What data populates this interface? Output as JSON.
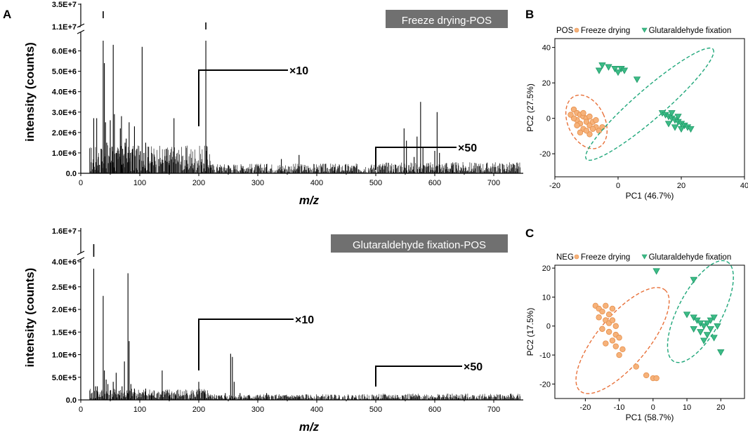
{
  "panel_labels": {
    "a": "A",
    "b": "B",
    "c": "C"
  },
  "chart_data": [
    {
      "type": "bar",
      "id": "spectrum-top",
      "title": "Freeze drying-POS",
      "xlabel": "m/z",
      "ylabel": "intensity (counts)",
      "xlim": [
        0,
        750
      ],
      "xticks": [
        "0",
        "100",
        "200",
        "300",
        "400",
        "500",
        "600",
        "700"
      ],
      "ylim": [
        0,
        6500000
      ],
      "yticks": [
        "0.0",
        "1.0E+6",
        "2.0E+6",
        "3.0E+6",
        "4.0E+6",
        "5.0E+6",
        "6.0E+6"
      ],
      "ybreak_ticks": [
        "1.1E+7",
        "3.5E+7"
      ],
      "magnifiers": [
        {
          "from": 200,
          "label": "×10"
        },
        {
          "from": 500,
          "label": "×50"
        }
      ],
      "peaks": [
        {
          "mz": 22,
          "value": 2700000
        },
        {
          "mz": 27,
          "value": 2700000
        },
        {
          "mz": 30,
          "value": 800000
        },
        {
          "mz": 35,
          "value": 1200000
        },
        {
          "mz": 38,
          "value": 6500000
        },
        {
          "mz": 40,
          "value": 5400000
        },
        {
          "mz": 42,
          "value": 2500000
        },
        {
          "mz": 44,
          "value": 1500000
        },
        {
          "mz": 50,
          "value": 2600000
        },
        {
          "mz": 53,
          "value": 1300000
        },
        {
          "mz": 55,
          "value": 6300000
        },
        {
          "mz": 57,
          "value": 2900000
        },
        {
          "mz": 60,
          "value": 1000000
        },
        {
          "mz": 63,
          "value": 700000
        },
        {
          "mz": 67,
          "value": 2200000
        },
        {
          "mz": 69,
          "value": 2800000
        },
        {
          "mz": 71,
          "value": 1200000
        },
        {
          "mz": 75,
          "value": 1500000
        },
        {
          "mz": 77,
          "value": 1700000
        },
        {
          "mz": 80,
          "value": 1000000
        },
        {
          "mz": 82,
          "value": 2500000
        },
        {
          "mz": 84,
          "value": 1000000
        },
        {
          "mz": 88,
          "value": 1200000
        },
        {
          "mz": 91,
          "value": 2300000
        },
        {
          "mz": 95,
          "value": 1200000
        },
        {
          "mz": 99,
          "value": 900000
        },
        {
          "mz": 104,
          "value": 6200000
        },
        {
          "mz": 107,
          "value": 1000000
        },
        {
          "mz": 110,
          "value": 1500000
        },
        {
          "mz": 115,
          "value": 1300000
        },
        {
          "mz": 120,
          "value": 1000000
        },
        {
          "mz": 126,
          "value": 600000
        },
        {
          "mz": 132,
          "value": 700000
        },
        {
          "mz": 138,
          "value": 500000
        },
        {
          "mz": 145,
          "value": 1200000
        },
        {
          "mz": 150,
          "value": 400000
        },
        {
          "mz": 158,
          "value": 2700000
        },
        {
          "mz": 170,
          "value": 400000
        },
        {
          "mz": 180,
          "value": 300000
        },
        {
          "mz": 190,
          "value": 250000
        },
        {
          "mz": 205,
          "value": 400000
        },
        {
          "mz": 212,
          "value": 6400000
        },
        {
          "mz": 214,
          "value": 1300000
        },
        {
          "mz": 220,
          "value": 400000
        },
        {
          "mz": 235,
          "value": 300000
        },
        {
          "mz": 250,
          "value": 400000
        },
        {
          "mz": 275,
          "value": 350000
        },
        {
          "mz": 290,
          "value": 250000
        },
        {
          "mz": 300,
          "value": 300000
        },
        {
          "mz": 315,
          "value": 450000
        },
        {
          "mz": 340,
          "value": 700000
        },
        {
          "mz": 370,
          "value": 900000
        },
        {
          "mz": 400,
          "value": 200000
        },
        {
          "mz": 430,
          "value": 150000
        },
        {
          "mz": 460,
          "value": 100000
        },
        {
          "mz": 530,
          "value": 200000
        },
        {
          "mz": 548,
          "value": 2200000
        },
        {
          "mz": 552,
          "value": 1600000
        },
        {
          "mz": 556,
          "value": 400000
        },
        {
          "mz": 565,
          "value": 800000
        },
        {
          "mz": 570,
          "value": 1800000
        },
        {
          "mz": 576,
          "value": 3500000
        },
        {
          "mz": 580,
          "value": 1300000
        },
        {
          "mz": 585,
          "value": 300000
        },
        {
          "mz": 600,
          "value": 1100000
        },
        {
          "mz": 604,
          "value": 3000000
        },
        {
          "mz": 608,
          "value": 1000000
        },
        {
          "mz": 620,
          "value": 500000
        },
        {
          "mz": 630,
          "value": 150000
        }
      ]
    },
    {
      "type": "bar",
      "id": "spectrum-bottom",
      "title": "Glutaraldehyde fixation-POS",
      "xlabel": "m/z",
      "ylabel": "intensity (counts)",
      "xlim": [
        0,
        750
      ],
      "xticks": [
        "0",
        "100",
        "200",
        "300",
        "400",
        "500",
        "600",
        "700"
      ],
      "ylim": [
        0,
        2900000
      ],
      "yticks": [
        "0.0",
        "5.0E+5",
        "1.0E+6",
        "1.5E+6",
        "2.0E+6",
        "2.5E+6"
      ],
      "ybreak_ticks": [
        "4.0E+6",
        "1.6E+7"
      ],
      "magnifiers": [
        {
          "from": 200,
          "label": "×10"
        },
        {
          "from": 500,
          "label": "×50"
        }
      ],
      "peaks": [
        {
          "mz": 22,
          "value": 2900000
        },
        {
          "mz": 25,
          "value": 300000
        },
        {
          "mz": 28,
          "value": 300000
        },
        {
          "mz": 38,
          "value": 2300000
        },
        {
          "mz": 40,
          "value": 650000
        },
        {
          "mz": 43,
          "value": 450000
        },
        {
          "mz": 46,
          "value": 350000
        },
        {
          "mz": 50,
          "value": 200000
        },
        {
          "mz": 55,
          "value": 400000
        },
        {
          "mz": 60,
          "value": 600000
        },
        {
          "mz": 65,
          "value": 200000
        },
        {
          "mz": 70,
          "value": 300000
        },
        {
          "mz": 74,
          "value": 850000
        },
        {
          "mz": 80,
          "value": 2800000
        },
        {
          "mz": 82,
          "value": 1300000
        },
        {
          "mz": 85,
          "value": 350000
        },
        {
          "mz": 91,
          "value": 250000
        },
        {
          "mz": 100,
          "value": 150000
        },
        {
          "mz": 110,
          "value": 250000
        },
        {
          "mz": 120,
          "value": 100000
        },
        {
          "mz": 130,
          "value": 150000
        },
        {
          "mz": 138,
          "value": 650000
        },
        {
          "mz": 150,
          "value": 150000
        },
        {
          "mz": 160,
          "value": 100000
        },
        {
          "mz": 175,
          "value": 80000
        },
        {
          "mz": 185,
          "value": 100000
        },
        {
          "mz": 200,
          "value": 400000
        },
        {
          "mz": 210,
          "value": 150000
        },
        {
          "mz": 230,
          "value": 100000
        },
        {
          "mz": 245,
          "value": 150000
        },
        {
          "mz": 254,
          "value": 1020000
        },
        {
          "mz": 257,
          "value": 950000
        },
        {
          "mz": 260,
          "value": 400000
        },
        {
          "mz": 270,
          "value": 150000
        },
        {
          "mz": 285,
          "value": 100000
        },
        {
          "mz": 300,
          "value": 100000
        },
        {
          "mz": 315,
          "value": 150000
        },
        {
          "mz": 330,
          "value": 80000
        },
        {
          "mz": 355,
          "value": 70000
        },
        {
          "mz": 370,
          "value": 60000
        },
        {
          "mz": 400,
          "value": 50000
        },
        {
          "mz": 430,
          "value": 60000
        },
        {
          "mz": 465,
          "value": 50000
        },
        {
          "mz": 520,
          "value": 60000
        },
        {
          "mz": 545,
          "value": 100000
        },
        {
          "mz": 560,
          "value": 70000
        },
        {
          "mz": 600,
          "value": 60000
        },
        {
          "mz": 640,
          "value": 50000
        }
      ]
    },
    {
      "type": "scatter",
      "id": "pca-pos",
      "title": "POS",
      "xlabel": "PC1 (46.7%)",
      "ylabel": "PC2 (27.5%)",
      "xlim": [
        -20,
        40
      ],
      "ylim": [
        -33,
        45
      ],
      "xticks": [
        -20,
        0,
        20,
        40
      ],
      "yticks": [
        -20,
        0,
        20,
        40
      ],
      "xtick_labels": [
        "-20",
        "0",
        "20",
        "40"
      ],
      "ytick_labels": [
        "-20",
        "0",
        "20",
        "40"
      ],
      "series": [
        {
          "name": "Freeze drying",
          "color": "#f6b27a",
          "edge": "#e58e4b",
          "marker": "circle",
          "points": [
            [
              -14,
              5
            ],
            [
              -13,
              3
            ],
            [
              -12,
              2
            ],
            [
              -11,
              1
            ],
            [
              -10,
              0
            ],
            [
              -13,
              -1
            ],
            [
              -12,
              -3
            ],
            [
              -10,
              -2
            ],
            [
              -9,
              -4
            ],
            [
              -8,
              -2
            ],
            [
              -7,
              -5
            ],
            [
              -11,
              -6
            ],
            [
              -12,
              -8
            ],
            [
              -9,
              -9
            ],
            [
              -14,
              0
            ],
            [
              -15,
              2
            ],
            [
              -13,
              -4
            ],
            [
              -10,
              -7
            ],
            [
              -8,
              -6
            ],
            [
              -6,
              -7
            ],
            [
              -5,
              -5
            ],
            [
              -7,
              -1
            ],
            [
              -11,
              3
            ],
            [
              -9,
              1
            ]
          ],
          "ellipse": {
            "cx": -10,
            "cy": -2,
            "rx": 7.5,
            "ry": 11.5,
            "angle": -25
          }
        },
        {
          "name": "Glutaraldehyde fixation",
          "color": "#3dbb86",
          "edge": "#1e9a68",
          "marker": "triangle",
          "points": [
            [
              -5,
              30
            ],
            [
              -3,
              29
            ],
            [
              -1,
              28
            ],
            [
              1,
              28
            ],
            [
              2,
              27
            ],
            [
              -6,
              27
            ],
            [
              0,
              26
            ],
            [
              6,
              22
            ],
            [
              14,
              3
            ],
            [
              15,
              2
            ],
            [
              16,
              1
            ],
            [
              17,
              0
            ],
            [
              18,
              -1
            ],
            [
              19,
              -2
            ],
            [
              20,
              -3
            ],
            [
              21,
              -4
            ],
            [
              22,
              -5
            ],
            [
              23,
              -6
            ],
            [
              16,
              -3
            ],
            [
              18,
              -5
            ],
            [
              20,
              -6
            ],
            [
              17,
              3
            ],
            [
              19,
              1
            ]
          ],
          "ellipse": {
            "cx": 10,
            "cy": 8,
            "rx": 34,
            "ry": 6,
            "angle": -41
          }
        }
      ]
    },
    {
      "type": "scatter",
      "id": "pca-neg",
      "title": "NEG",
      "xlabel": "PC1 (58.7%)",
      "ylabel": "PC2 (17.5%)",
      "xlim": [
        -29,
        27
      ],
      "ylim": [
        -25,
        21
      ],
      "xticks": [
        -20,
        -10,
        0,
        10,
        20
      ],
      "yticks": [
        -20,
        -10,
        0,
        10,
        20
      ],
      "xtick_labels": [
        "-20",
        "-10",
        "0",
        "10",
        "20"
      ],
      "ytick_labels": [
        "-20",
        "-10",
        "0",
        "10",
        "20"
      ],
      "series": [
        {
          "name": "Freeze drying",
          "color": "#f6b27a",
          "edge": "#e58e4b",
          "marker": "circle",
          "points": [
            [
              -17,
              7
            ],
            [
              -16,
              6
            ],
            [
              -14,
              7
            ],
            [
              -15,
              5
            ],
            [
              -13,
              4
            ],
            [
              -12,
              6
            ],
            [
              -16,
              3
            ],
            [
              -14,
              2
            ],
            [
              -13,
              1
            ],
            [
              -12,
              2
            ],
            [
              -11,
              0
            ],
            [
              -15,
              -1
            ],
            [
              -13,
              -2
            ],
            [
              -11,
              -3
            ],
            [
              -10,
              -4
            ],
            [
              -12,
              -5
            ],
            [
              -14,
              -6
            ],
            [
              -11,
              -7
            ],
            [
              -9,
              -8
            ],
            [
              -10,
              -10
            ],
            [
              -5,
              -14
            ],
            [
              -2,
              -17
            ],
            [
              0,
              -18
            ],
            [
              1,
              -18
            ]
          ],
          "ellipse": {
            "cx": -9,
            "cy": -5,
            "rx": 21,
            "ry": 8,
            "angle": -50
          }
        },
        {
          "name": "Glutaraldehyde fixation",
          "color": "#3dbb86",
          "edge": "#1e9a68",
          "marker": "triangle",
          "points": [
            [
              1,
              19
            ],
            [
              12,
              16
            ],
            [
              10,
              4
            ],
            [
              12,
              3
            ],
            [
              13,
              2
            ],
            [
              14,
              1
            ],
            [
              15,
              0
            ],
            [
              16,
              1
            ],
            [
              17,
              2
            ],
            [
              18,
              3
            ],
            [
              19,
              0
            ],
            [
              14,
              -2
            ],
            [
              16,
              -3
            ],
            [
              17,
              -1
            ],
            [
              18,
              -4
            ],
            [
              15,
              -5
            ],
            [
              12,
              -1
            ],
            [
              20,
              -9
            ]
          ],
          "ellipse": {
            "cx": 14,
            "cy": 5,
            "rx": 18,
            "ry": 7,
            "angle": -62
          }
        }
      ]
    }
  ]
}
